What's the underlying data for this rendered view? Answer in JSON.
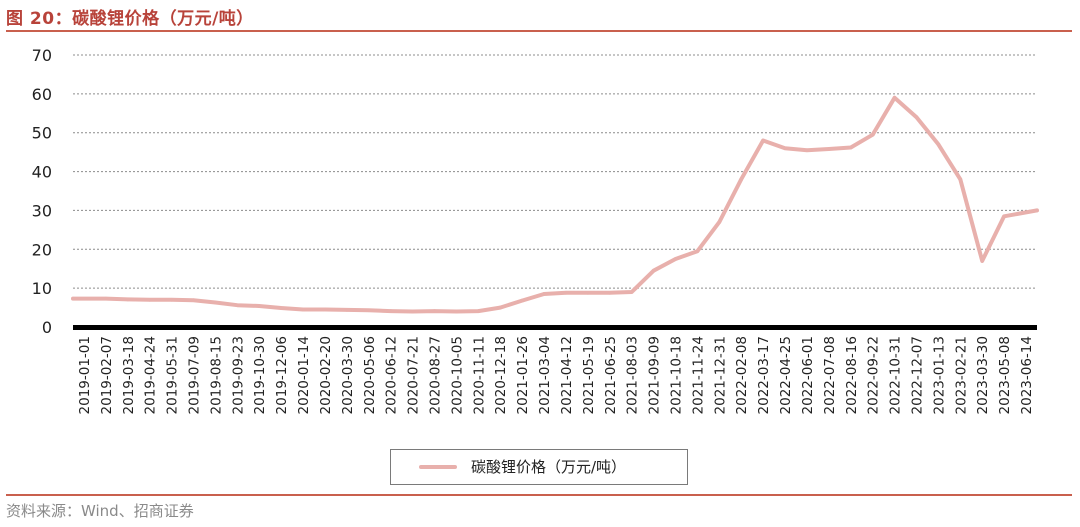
{
  "figure": {
    "title": "图 20：碳酸锂价格（万元/吨）",
    "source": "资料来源：Wind、招商证券"
  },
  "chart_data": {
    "type": "line",
    "title": "",
    "xlabel": "",
    "ylabel": "",
    "ylim": [
      0,
      70
    ],
    "yticks": [
      0,
      10,
      20,
      30,
      40,
      50,
      60,
      70
    ],
    "grid": "horizontal dashed",
    "legend_position": "bottom",
    "line_color": "#e8b0ac",
    "categories": [
      "2019-01-01",
      "2019-02-07",
      "2019-03-18",
      "2019-04-24",
      "2019-05-31",
      "2019-07-09",
      "2019-08-15",
      "2019-09-23",
      "2019-10-30",
      "2019-12-06",
      "2020-01-14",
      "2020-02-20",
      "2020-03-30",
      "2020-05-06",
      "2020-06-12",
      "2020-07-21",
      "2020-08-27",
      "2020-10-05",
      "2020-11-11",
      "2020-12-18",
      "2021-01-26",
      "2021-03-04",
      "2021-04-12",
      "2021-05-19",
      "2021-06-25",
      "2021-08-03",
      "2021-09-09",
      "2021-10-18",
      "2021-11-24",
      "2021-12-31",
      "2022-02-08",
      "2022-03-17",
      "2022-04-25",
      "2022-06-01",
      "2022-07-08",
      "2022-08-16",
      "2022-09-22",
      "2022-10-31",
      "2022-12-07",
      "2023-01-13",
      "2023-02-21",
      "2023-03-30",
      "2023-05-08",
      "2023-06-14"
    ],
    "series": [
      {
        "name": "碳酸锂价格（万元/吨）",
        "values": [
          7.3,
          7.3,
          7.1,
          7.0,
          7.0,
          6.9,
          6.3,
          5.6,
          5.4,
          4.9,
          4.5,
          4.5,
          4.4,
          4.3,
          4.1,
          4.0,
          4.1,
          4.0,
          4.1,
          5.0,
          6.8,
          8.5,
          8.8,
          8.8,
          8.8,
          9.0,
          14.5,
          17.5,
          19.5,
          27.0,
          38.0,
          48.0,
          46.0,
          45.5,
          45.8,
          46.2,
          49.5,
          59.0,
          54.0,
          47.0,
          38.0,
          17.0,
          28.5,
          30.0
        ]
      }
    ]
  }
}
